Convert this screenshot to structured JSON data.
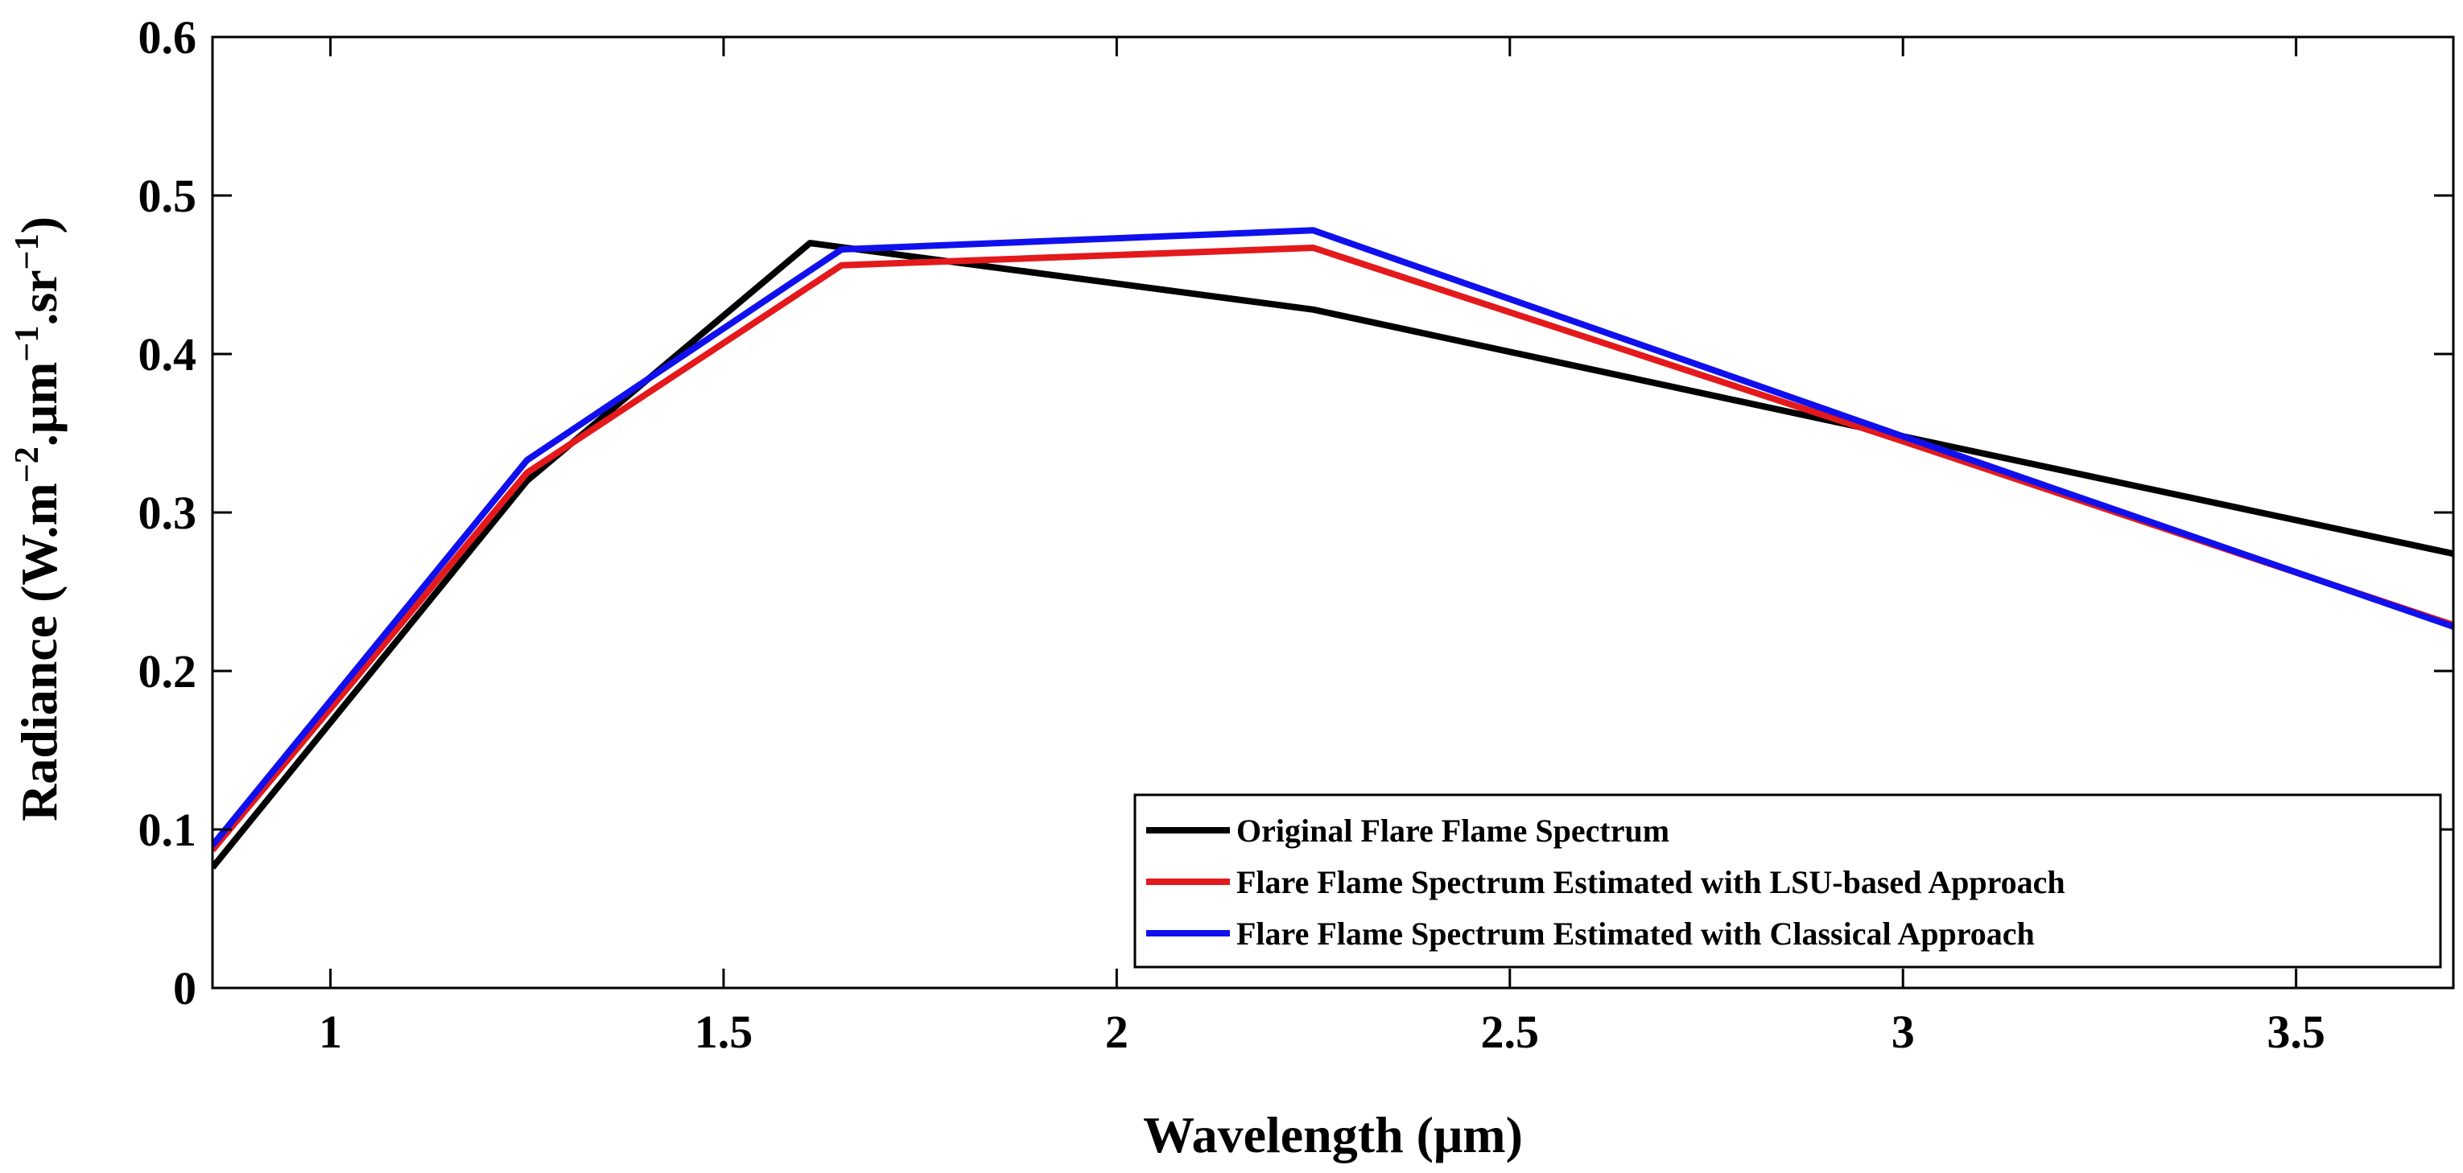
{
  "chart_data": {
    "type": "line",
    "title": "",
    "xlabel": "Wavelength (μm)",
    "ylabel_parts": {
      "prefix": "Radiance (W.m",
      "sup1": "−2",
      "mid1": ".μm",
      "sup2": "−1",
      "mid2": ".sr",
      "sup3": "−1",
      "suffix": ")"
    },
    "xlim": [
      0.85,
      3.7
    ],
    "ylim": [
      0,
      0.6
    ],
    "xticks": [
      1,
      1.5,
      2,
      2.5,
      3,
      3.5
    ],
    "xtick_labels": [
      "1",
      "1.5",
      "2",
      "2.5",
      "3",
      "3.5"
    ],
    "yticks": [
      0,
      0.1,
      0.2,
      0.3,
      0.4,
      0.5,
      0.6
    ],
    "ytick_labels": [
      "0",
      "0.1",
      "0.2",
      "0.3",
      "0.4",
      "0.5",
      "0.6"
    ],
    "grid": false,
    "legend_position": "bottom-right",
    "series": [
      {
        "name": "Original Flare Flame Spectrum",
        "color": "#000000",
        "x": [
          0.85,
          1.25,
          1.61,
          2.25,
          3.0,
          3.7
        ],
        "y": [
          0.076,
          0.32,
          0.47,
          0.428,
          0.348,
          0.274
        ]
      },
      {
        "name": "Flare Flame Spectrum Estimated with LSU-based Approach",
        "color": "#e3191c",
        "x": [
          0.85,
          1.25,
          1.65,
          2.25,
          3.0,
          3.7
        ],
        "y": [
          0.087,
          0.325,
          0.456,
          0.467,
          0.345,
          0.229
        ]
      },
      {
        "name": "Flare Flame Spectrum Estimated with Classical Approach",
        "color": "#1010ee",
        "x": [
          0.85,
          1.25,
          1.65,
          2.25,
          3.0,
          3.7
        ],
        "y": [
          0.09,
          0.333,
          0.466,
          0.478,
          0.348,
          0.228
        ]
      }
    ]
  }
}
